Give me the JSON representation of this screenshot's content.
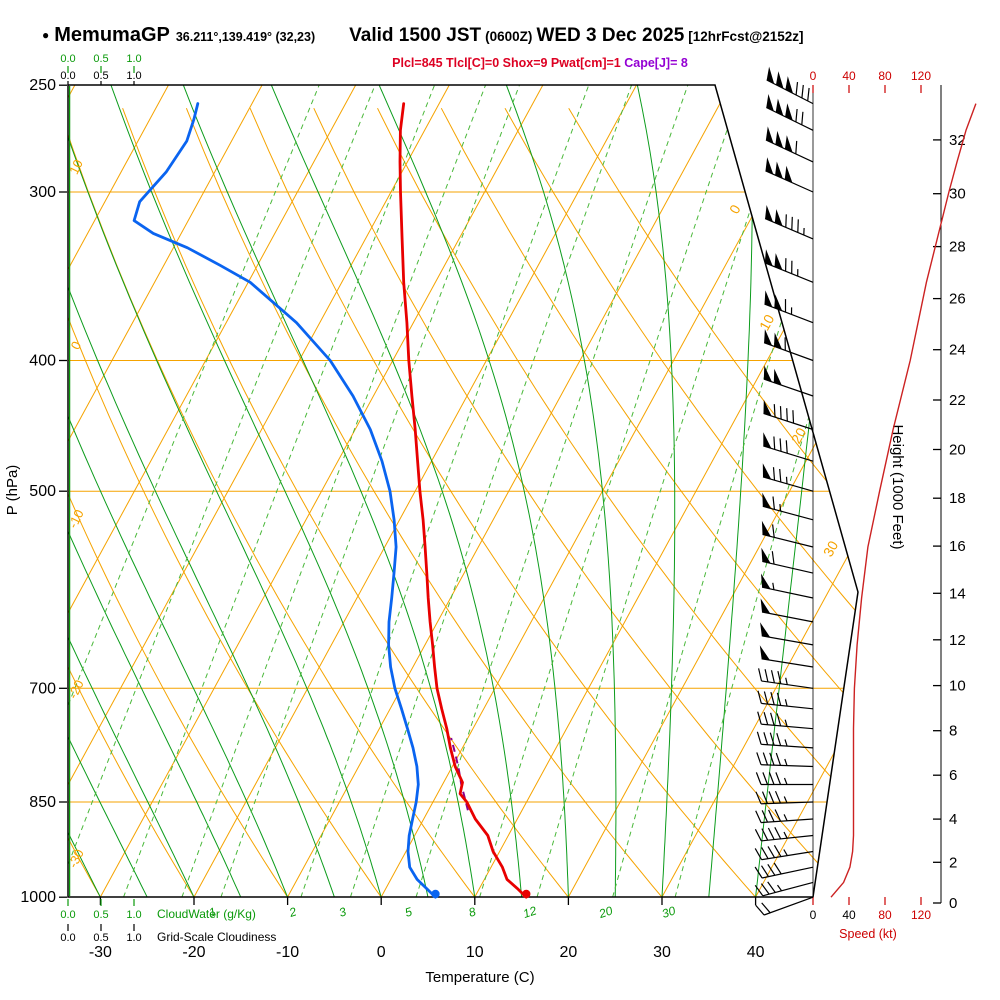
{
  "title": {
    "station": "MemumaGP",
    "coords": "36.211°,139.419° (32,23)",
    "valid_main": "Valid 1500 JST",
    "valid_z": "(0600Z)",
    "valid_date": "WED 3 Dec 2025",
    "fcst": "[12hrFcst@2152z]"
  },
  "params": {
    "red_text": "Plcl=845 Tlcl[C]=0 Shox=9 Pwat[cm]=1",
    "purple_text": "Cape[J]= 8"
  },
  "colors": {
    "grid_orange": "#f5a300",
    "green_solid": "#0c9c1c",
    "green_dashed": "#4ab83a",
    "green_text": "#0a9a0a",
    "temp_red": "#e80000",
    "dew_blue": "#0a64f0",
    "parcel_purple": "#8b008b",
    "params_red": "#dd0022",
    "params_purple": "#9400d3",
    "speed_red": "#cc0000",
    "speed_curve_red": "#cc2222",
    "black": "#000000"
  },
  "chart_data": {
    "type": "skewt_log_p_sounding",
    "pressure_axis": {
      "label": "P (hPa)",
      "ticks": [
        250,
        300,
        400,
        500,
        700,
        850,
        1000
      ],
      "range": [
        250,
        1000
      ]
    },
    "temperature_axis": {
      "label": "Temperature (C)",
      "ticks": [
        -30,
        -20,
        -10,
        0,
        10,
        20,
        30,
        40
      ],
      "range": [
        -40,
        46
      ]
    },
    "height_axis": {
      "label": "Height (1000 Feet)",
      "ticks": [
        0,
        2,
        4,
        6,
        8,
        10,
        12,
        14,
        16,
        18,
        20,
        22,
        24,
        26,
        28,
        30,
        32
      ]
    },
    "speed_axis": {
      "label": "Speed (kt)",
      "ticks": [
        0,
        40,
        80,
        120
      ],
      "bottom_tick_colors": [
        "#000000",
        "#000000",
        "#cc0000",
        "#cc0000"
      ]
    },
    "cloud_scales": {
      "values": [
        "0.0",
        "0.5",
        "1.0"
      ],
      "cloudwater_label": "CloudWater (g/Kg)",
      "cloudiness_label": "Grid-Scale Cloudiness",
      "cloudwater_profile_value": 0.0,
      "cloudiness_profile_value": 0.0
    },
    "isotherm_edge_labels": [
      0,
      10,
      20,
      30
    ],
    "dry_adiabat_labels": [
      10,
      0,
      -10,
      -20,
      -30
    ],
    "mixing_ratio_labels": [
      1,
      2,
      3,
      5,
      8,
      12,
      20,
      30
    ],
    "mixing_ratio_extra_lines": [
      0.1,
      0.2,
      0.4,
      0.7
    ],
    "isotherm_step": 10,
    "dry_adiabat_step": 10,
    "moist_adiabat_anchors": [
      -30,
      -25,
      -20,
      -15,
      -10,
      -5,
      0,
      5,
      10,
      15,
      20,
      25,
      30,
      35,
      40
    ],
    "temperature_profile": [
      [
        1000,
        15.5
      ],
      [
        985,
        14.0
      ],
      [
        970,
        12.4
      ],
      [
        950,
        11.2
      ],
      [
        925,
        9.3
      ],
      [
        900,
        7.8
      ],
      [
        875,
        5.5
      ],
      [
        850,
        3.6
      ],
      [
        838,
        2.4
      ],
      [
        822,
        2.0
      ],
      [
        800,
        0.3
      ],
      [
        775,
        -1.3
      ],
      [
        750,
        -2.8
      ],
      [
        725,
        -4.5
      ],
      [
        700,
        -6.2
      ],
      [
        675,
        -7.7
      ],
      [
        650,
        -9.2
      ],
      [
        625,
        -10.8
      ],
      [
        600,
        -12.4
      ],
      [
        575,
        -14.0
      ],
      [
        550,
        -15.7
      ],
      [
        525,
        -17.5
      ],
      [
        500,
        -19.5
      ],
      [
        475,
        -21.5
      ],
      [
        450,
        -23.6
      ],
      [
        425,
        -25.9
      ],
      [
        400,
        -28.3
      ],
      [
        375,
        -30.7
      ],
      [
        350,
        -33.4
      ],
      [
        325,
        -36.1
      ],
      [
        300,
        -39.0
      ],
      [
        285,
        -40.8
      ],
      [
        270,
        -42.6
      ],
      [
        258,
        -43.8
      ]
    ],
    "dewpoint_profile": [
      [
        1000,
        5.8
      ],
      [
        985,
        4.3
      ],
      [
        970,
        2.8
      ],
      [
        950,
        1.3
      ],
      [
        925,
        0.2
      ],
      [
        900,
        -0.6
      ],
      [
        875,
        -1.2
      ],
      [
        850,
        -1.8
      ],
      [
        825,
        -2.6
      ],
      [
        800,
        -3.8
      ],
      [
        775,
        -5.3
      ],
      [
        750,
        -7.0
      ],
      [
        725,
        -8.8
      ],
      [
        700,
        -10.7
      ],
      [
        675,
        -12.4
      ],
      [
        650,
        -13.9
      ],
      [
        625,
        -15.2
      ],
      [
        600,
        -16.3
      ],
      [
        575,
        -17.5
      ],
      [
        550,
        -18.8
      ],
      [
        525,
        -20.6
      ],
      [
        500,
        -22.7
      ],
      [
        475,
        -25.3
      ],
      [
        450,
        -28.4
      ],
      [
        425,
        -32.2
      ],
      [
        400,
        -36.7
      ],
      [
        375,
        -42.5
      ],
      [
        350,
        -49.8
      ],
      [
        340,
        -54.0
      ],
      [
        330,
        -58.5
      ],
      [
        322,
        -63.0
      ],
      [
        315,
        -65.8
      ],
      [
        305,
        -66.3
      ],
      [
        290,
        -65.2
      ],
      [
        275,
        -64.8
      ],
      [
        265,
        -65.3
      ],
      [
        258,
        -65.8
      ]
    ],
    "parcel_path": [
      [
        862,
        4.2
      ],
      [
        845,
        3.2
      ],
      [
        825,
        2.0
      ],
      [
        805,
        0.9
      ],
      [
        785,
        -0.3
      ],
      [
        762,
        -1.8
      ]
    ],
    "surface_points": {
      "temperature": [
        1000,
        15.5
      ],
      "dewpoint": [
        1000,
        5.8
      ]
    },
    "speed_profile": [
      [
        1000,
        20
      ],
      [
        975,
        34
      ],
      [
        950,
        41
      ],
      [
        925,
        44
      ],
      [
        900,
        45
      ],
      [
        850,
        45
      ],
      [
        800,
        45
      ],
      [
        750,
        45
      ],
      [
        700,
        46
      ],
      [
        650,
        49
      ],
      [
        600,
        54
      ],
      [
        550,
        61
      ],
      [
        500,
        74
      ],
      [
        450,
        89
      ],
      [
        400,
        108
      ],
      [
        350,
        126
      ],
      [
        300,
        151
      ],
      [
        285,
        160
      ],
      [
        270,
        170
      ],
      [
        258,
        181
      ]
    ],
    "wind_profile": [
      [
        1000,
        250,
        20
      ],
      [
        975,
        255,
        35
      ],
      [
        950,
        258,
        40
      ],
      [
        925,
        261,
        45
      ],
      [
        900,
        264,
        45
      ],
      [
        875,
        266,
        45
      ],
      [
        850,
        268,
        45
      ],
      [
        825,
        270,
        45
      ],
      [
        800,
        272,
        45
      ],
      [
        775,
        274,
        45
      ],
      [
        750,
        275,
        45
      ],
      [
        725,
        276,
        45
      ],
      [
        700,
        278,
        45
      ],
      [
        675,
        279,
        50
      ],
      [
        650,
        280,
        50
      ],
      [
        625,
        281,
        50
      ],
      [
        600,
        282,
        55
      ],
      [
        575,
        283,
        60
      ],
      [
        550,
        284,
        60
      ],
      [
        525,
        285,
        65
      ],
      [
        500,
        286,
        75
      ],
      [
        475,
        287,
        80
      ],
      [
        450,
        288,
        90
      ],
      [
        425,
        289,
        100
      ],
      [
        400,
        290,
        110
      ],
      [
        375,
        291,
        115
      ],
      [
        350,
        292,
        125
      ],
      [
        325,
        293,
        135
      ],
      [
        300,
        294,
        150
      ],
      [
        285,
        295,
        160
      ],
      [
        270,
        296,
        170
      ],
      [
        258,
        297,
        180
      ]
    ]
  }
}
